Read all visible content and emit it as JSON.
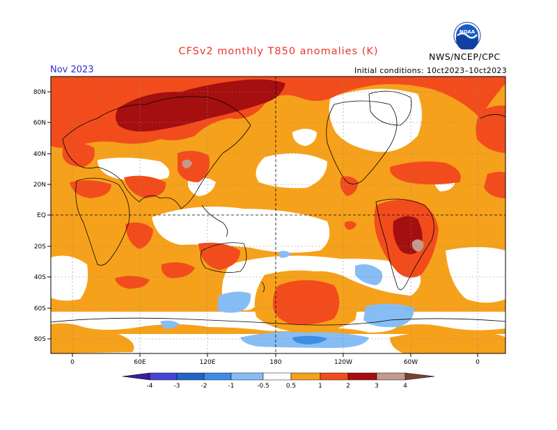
{
  "title": "CFSv2 monthly T850 anomalies (K)",
  "month": "Nov 2023",
  "initial_conditions": "Initial conditions: 10ct2023–10ct2023",
  "agency": "NWS/NCEP/CPC",
  "logo_text": "NOAA",
  "map": {
    "lat_labels": [
      "80N",
      "60N",
      "40N",
      "20N",
      "EQ",
      "20S",
      "40S",
      "60S",
      "80S"
    ],
    "lon_labels": [
      "0",
      "60E",
      "120E",
      "180",
      "120W",
      "60W",
      "0"
    ]
  },
  "colorbar": {
    "labels": [
      "-4",
      "-3",
      "-2",
      "-1",
      "-0.5",
      "0.5",
      "1",
      "2",
      "3",
      "4"
    ],
    "colors": {
      "lt_-4": "#3a1f9a",
      "-4_-3": "#4646d2",
      "-3_-2": "#2264c8",
      "-2_-1": "#3c8ee6",
      "-1_-0.5": "#86bdf5",
      "0.5_1": "#f6a11b",
      "1_2": "#f24c1c",
      "2_3": "#a50f0f",
      "3_4": "#c39a8c",
      "gt_4": "#7b4230"
    }
  }
}
